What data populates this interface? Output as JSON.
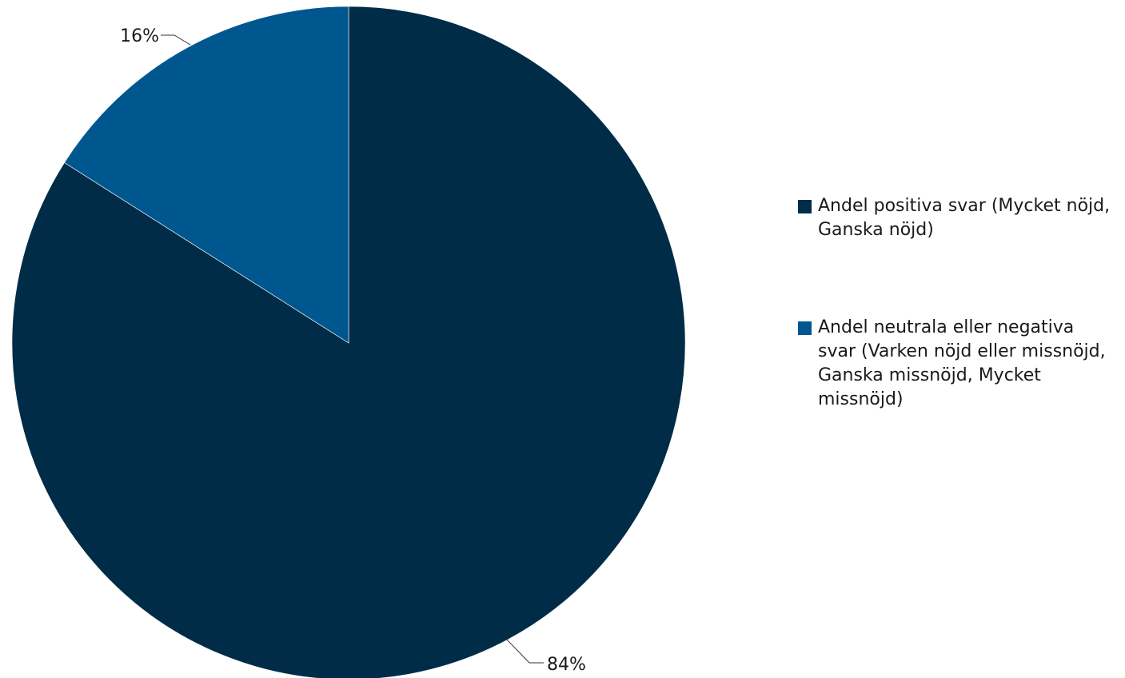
{
  "chart_data": {
    "type": "pie",
    "title": "",
    "start_angle_deg": 0,
    "direction": "clockwise",
    "slices": [
      {
        "label": "Andel positiva svar (Mycket nöjd, Ganska nöjd)",
        "value": 84,
        "display": "84%",
        "color": "#002c47"
      },
      {
        "label": "Andel neutrala eller negativa svar (Varken nöjd eller missnöjd, Ganska missnöjd, Mycket missnöjd)",
        "value": 16,
        "display": "16%",
        "color": "#00578f"
      }
    ],
    "legend_position": "right"
  }
}
